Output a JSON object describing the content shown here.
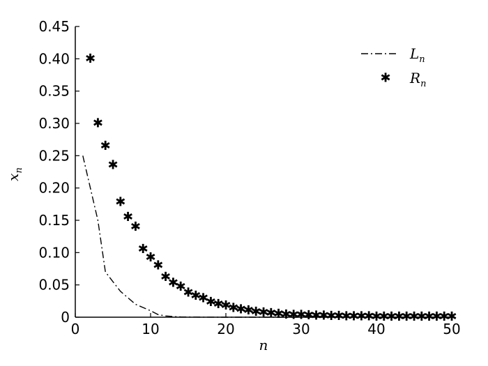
{
  "chart_data": {
    "type": "line",
    "xlabel": "n",
    "ylabel": "x",
    "ylabel_sub": "n",
    "xlim": [
      0,
      50
    ],
    "ylim": [
      0,
      0.45
    ],
    "x_ticks": [
      "0",
      "10",
      "20",
      "30",
      "40",
      "50"
    ],
    "y_ticks": [
      "0",
      "0.05",
      "0.10",
      "0.15",
      "0.20",
      "0.25",
      "0.30",
      "0.35",
      "0.40",
      "0.45"
    ],
    "grid": false,
    "legend_position": "top-right",
    "series": [
      {
        "name": "L",
        "name_sub": "n",
        "style": "dash-dot line",
        "x": [
          1,
          2,
          3,
          4,
          5,
          6,
          7,
          8,
          9,
          10,
          11,
          12,
          13,
          14,
          15,
          16,
          17,
          18,
          19,
          20,
          22,
          25,
          30,
          35,
          40,
          45,
          50
        ],
        "values": [
          0.25,
          0.2,
          0.15,
          0.07,
          0.055,
          0.04,
          0.03,
          0.02,
          0.015,
          0.01,
          0.004,
          0.002,
          0.001,
          0.0005,
          0.0003,
          0.0002,
          0.0001,
          0.0001,
          0.0,
          0.0,
          0.0,
          0.0,
          0.0,
          0.0,
          0.0,
          0.0,
          0.0
        ]
      },
      {
        "name": "R",
        "name_sub": "n",
        "style": "asterisk markers",
        "x": [
          2,
          3,
          4,
          5,
          6,
          7,
          8,
          9,
          10,
          11,
          12,
          13,
          14,
          15,
          16,
          17,
          18,
          19,
          20,
          21,
          22,
          23,
          24,
          25,
          26,
          27,
          28,
          29,
          30,
          31,
          32,
          33,
          34,
          35,
          36,
          37,
          38,
          39,
          40,
          41,
          42,
          43,
          44,
          45,
          46,
          47,
          48,
          49,
          50
        ],
        "values": [
          0.4,
          0.3,
          0.265,
          0.235,
          0.178,
          0.155,
          0.14,
          0.105,
          0.092,
          0.08,
          0.062,
          0.053,
          0.047,
          0.038,
          0.033,
          0.029,
          0.023,
          0.02,
          0.018,
          0.014,
          0.012,
          0.01,
          0.008,
          0.007,
          0.006,
          0.005,
          0.004,
          0.0035,
          0.003,
          0.0025,
          0.002,
          0.002,
          0.0015,
          0.0015,
          0.001,
          0.001,
          0.001,
          0.001,
          0.0008,
          0.0007,
          0.0006,
          0.0005,
          0.0005,
          0.0004,
          0.0004,
          0.0003,
          0.0003,
          0.0003,
          0.0003
        ]
      }
    ]
  }
}
